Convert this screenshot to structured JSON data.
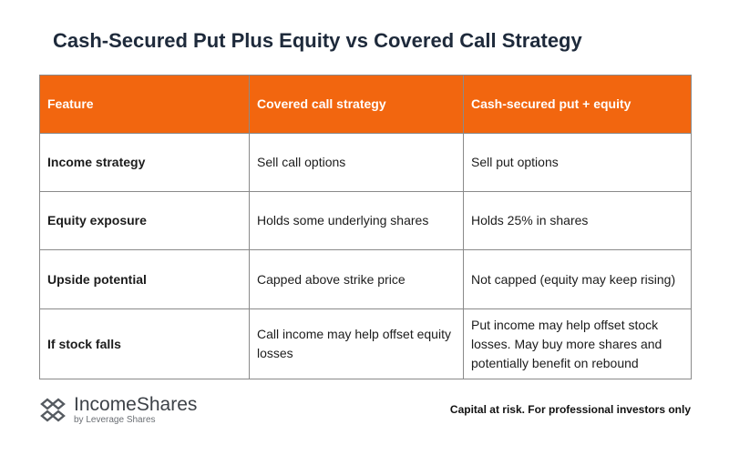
{
  "title": "Cash-Secured Put Plus Equity vs Covered Call Strategy",
  "table": {
    "header": [
      "Feature",
      "Covered call strategy",
      "Cash-secured put + equity"
    ],
    "rows": [
      [
        "Income strategy",
        "Sell call options",
        "Sell put options"
      ],
      [
        "Equity exposure",
        "Holds some underlying shares",
        "Holds 25% in shares"
      ],
      [
        "Upside potential",
        "Capped above strike price",
        "Not capped (equity may keep rising)"
      ],
      [
        "If stock falls",
        "Call income may help offset equity losses",
        "Put income may help offset stock losses. May buy more shares and potentially benefit on rebound"
      ]
    ]
  },
  "footer": {
    "brand": "IncomeShares",
    "tagline": "by Leverage Shares",
    "disclaimer": "Capital at risk. For professional investors only"
  }
}
